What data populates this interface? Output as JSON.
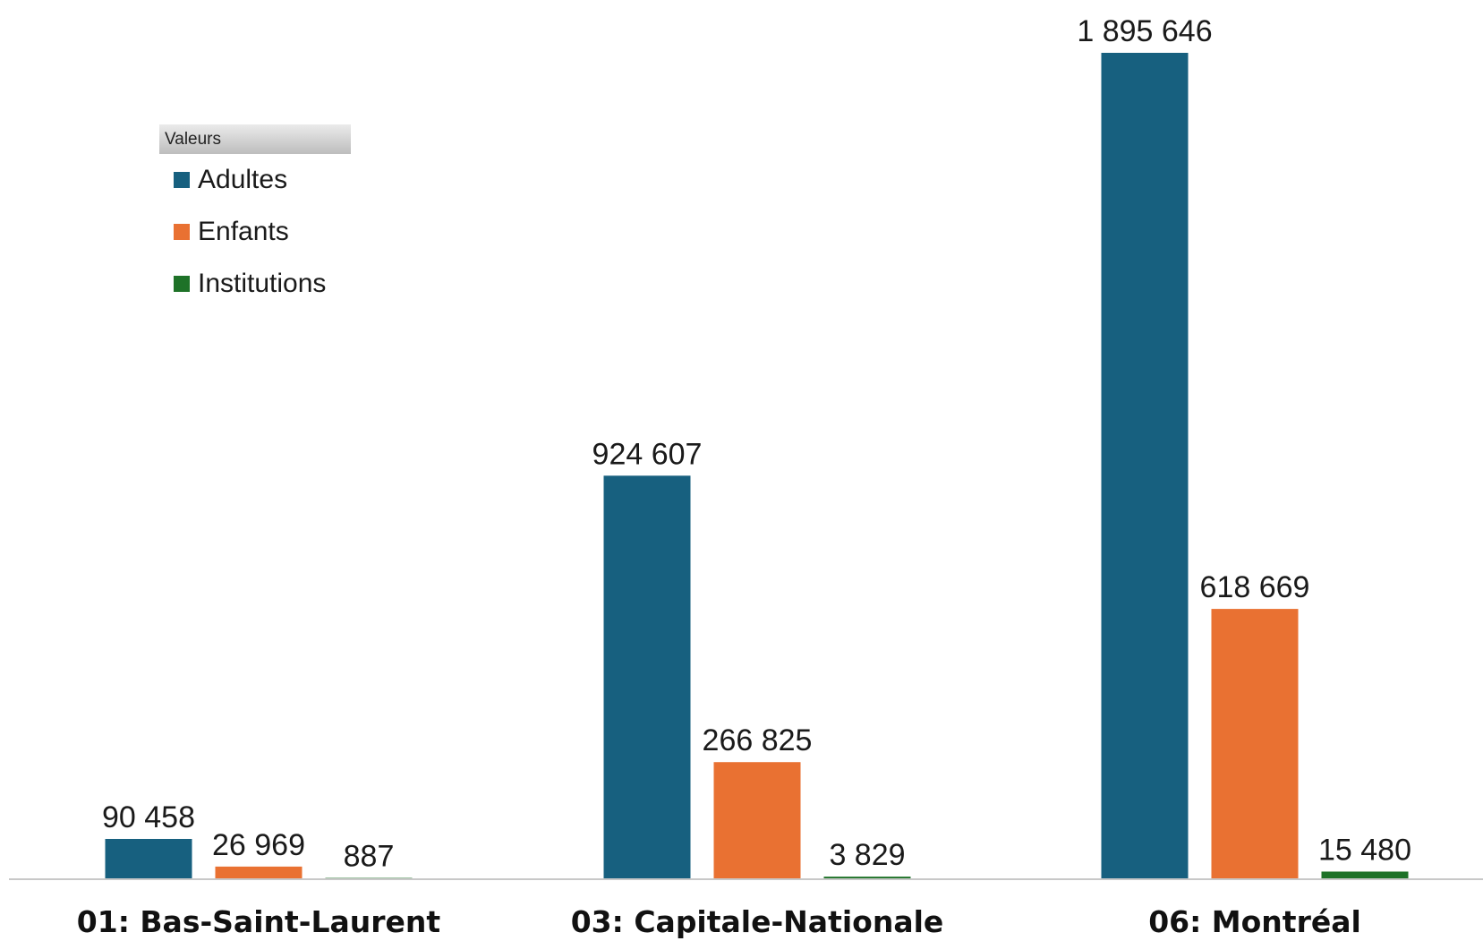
{
  "chart_data": {
    "type": "bar",
    "categories": [
      "01: Bas-Saint-Laurent",
      "03: Capitale-Nationale",
      "06: Montréal"
    ],
    "series": [
      {
        "name": "Adultes",
        "color": "#17607f",
        "values": [
          90458,
          924607,
          1895646
        ],
        "labels": [
          "90 458",
          "924 607",
          "1 895 646"
        ]
      },
      {
        "name": "Enfants",
        "color": "#e97132",
        "values": [
          26969,
          266825,
          618669
        ],
        "labels": [
          "26 969",
          "266 825",
          "618 669"
        ]
      },
      {
        "name": "Institutions",
        "color": "#1e7228",
        "values": [
          887,
          3829,
          15480
        ],
        "labels": [
          "887",
          "3 829",
          "15 480"
        ]
      }
    ],
    "legend": {
      "title": "Valeurs",
      "position": "top-left"
    },
    "ylim": [
      0,
      1895646
    ],
    "grid": false,
    "title": "",
    "xlabel": "",
    "ylabel": ""
  }
}
